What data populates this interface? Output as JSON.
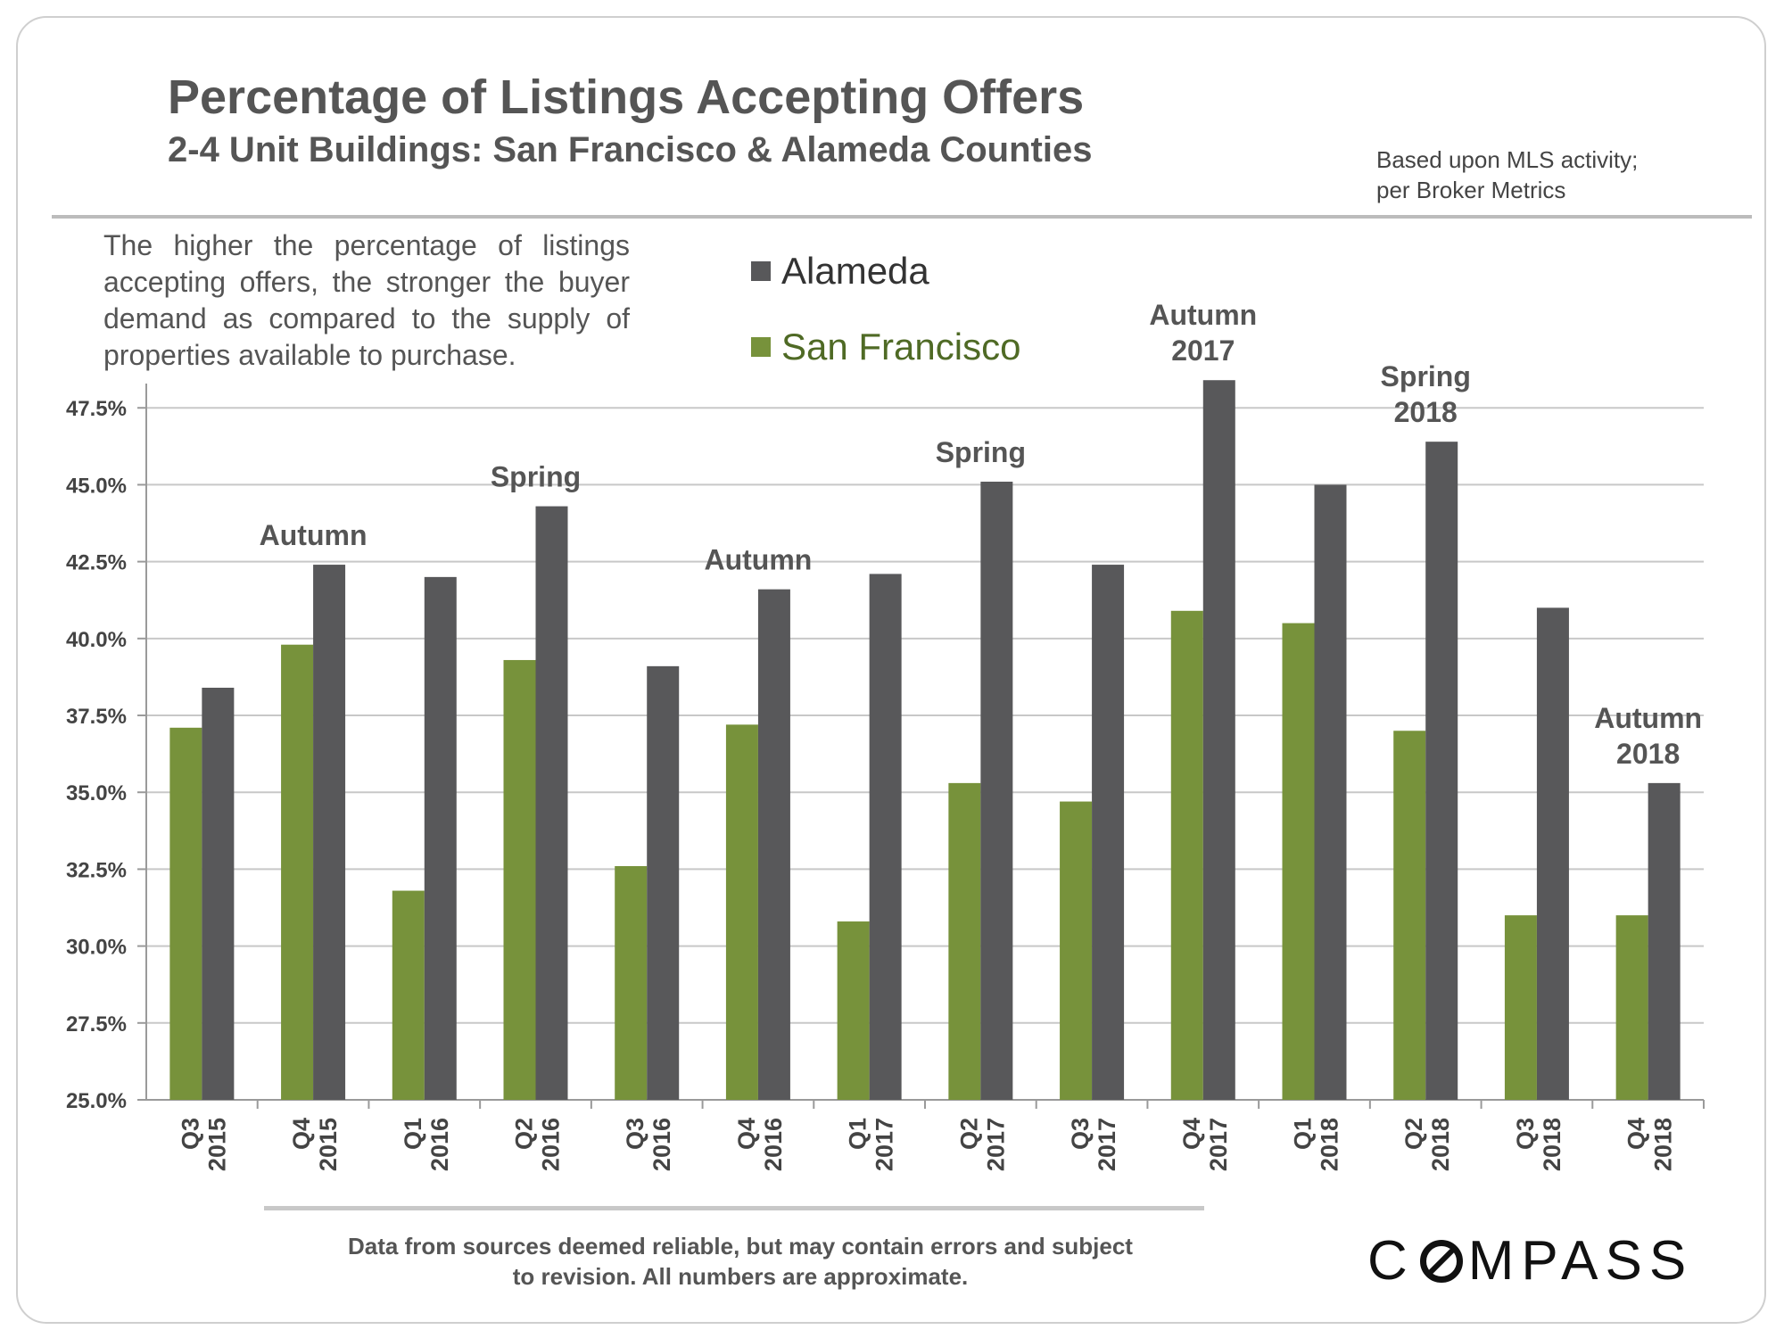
{
  "header": {
    "title": "Percentage of Listings Accepting Offers",
    "subtitle": "2-4 Unit Buildings: San Francisco & Alameda Counties",
    "source_line1": "Based upon MLS activity;",
    "source_line2": "per Broker Metrics"
  },
  "note": "The higher the percentage of listings accepting offers, the stronger the buyer demand as compared to the supply of properties available to purchase.",
  "footer": {
    "disclaimer_line1": "Data from sources deemed reliable, but may contain errors and subject",
    "disclaimer_line2": "to revision. All numbers are approximate.",
    "logo_left": "C",
    "logo_right": "MPASS"
  },
  "colors": {
    "alameda": "#58585a",
    "san_francisco": "#77923b",
    "grid": "#c8c8c8",
    "axis": "#9a9a9a"
  },
  "chart_data": {
    "type": "bar",
    "title": "Percentage of Listings Accepting Offers",
    "xlabel": "",
    "ylabel": "",
    "ylim": [
      25.0,
      48.0
    ],
    "yticks": [
      "25.0%",
      "27.5%",
      "30.0%",
      "32.5%",
      "35.0%",
      "37.5%",
      "40.0%",
      "42.5%",
      "45.0%",
      "47.5%"
    ],
    "ytick_values": [
      25.0,
      27.5,
      30.0,
      32.5,
      35.0,
      37.5,
      40.0,
      42.5,
      45.0,
      47.5
    ],
    "grid": true,
    "legend_position": "top-center",
    "categories": [
      {
        "quarter": "Q3",
        "year": "2015"
      },
      {
        "quarter": "Q4",
        "year": "2015"
      },
      {
        "quarter": "Q1",
        "year": "2016"
      },
      {
        "quarter": "Q2",
        "year": "2016"
      },
      {
        "quarter": "Q3",
        "year": "2016"
      },
      {
        "quarter": "Q4",
        "year": "2016"
      },
      {
        "quarter": "Q1",
        "year": "2017"
      },
      {
        "quarter": "Q2",
        "year": "2017"
      },
      {
        "quarter": "Q3",
        "year": "2017"
      },
      {
        "quarter": "Q4",
        "year": "2017"
      },
      {
        "quarter": "Q1",
        "year": "2018"
      },
      {
        "quarter": "Q2",
        "year": "2018"
      },
      {
        "quarter": "Q3",
        "year": "2018"
      },
      {
        "quarter": "Q4",
        "year": "2018"
      }
    ],
    "series": [
      {
        "name": "San Francisco",
        "values": [
          37.1,
          39.8,
          31.8,
          39.3,
          32.6,
          37.2,
          30.8,
          35.3,
          34.7,
          40.9,
          40.5,
          37.0,
          31.0,
          31.0
        ]
      },
      {
        "name": "Alameda",
        "values": [
          38.4,
          42.4,
          42.0,
          44.3,
          39.1,
          41.6,
          42.1,
          45.1,
          42.4,
          48.4,
          45.0,
          46.4,
          41.0,
          35.3
        ]
      }
    ],
    "annotations": [
      {
        "category_index": 1,
        "lines": [
          "Autumn"
        ]
      },
      {
        "category_index": 3,
        "lines": [
          "Spring"
        ]
      },
      {
        "category_index": 5,
        "lines": [
          "Autumn"
        ]
      },
      {
        "category_index": 7,
        "lines": [
          "Spring"
        ]
      },
      {
        "category_index": 9,
        "lines": [
          "Autumn",
          "2017"
        ]
      },
      {
        "category_index": 11,
        "lines": [
          "Spring",
          "2018"
        ]
      },
      {
        "category_index": 13,
        "lines": [
          "Autumn",
          "2018"
        ]
      }
    ]
  }
}
